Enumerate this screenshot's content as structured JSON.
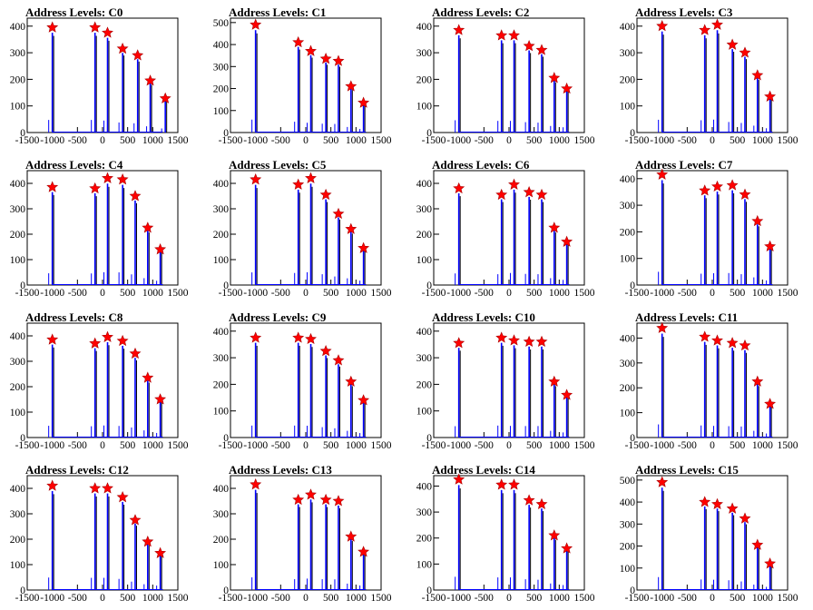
{
  "panels": [
    {
      "title": "Address Levels: C0",
      "chart_data": {
        "type": "histogram",
        "ylim": [
          0,
          430
        ],
        "xlim": [
          -1500,
          1500
        ],
        "peaks_x": [
          -1000,
          -150,
          100,
          400,
          700,
          950,
          1250
        ],
        "star_values": [
          395,
          395,
          375,
          315,
          290,
          195,
          128
        ]
      }
    },
    {
      "title": "Address Levels: C1",
      "chart_data": {
        "type": "histogram",
        "ylim": [
          0,
          520
        ],
        "xlim": [
          -1500,
          1500
        ],
        "peaks_x": [
          -1000,
          -150,
          100,
          400,
          650,
          900,
          1150
        ],
        "star_values": [
          490,
          410,
          370,
          335,
          325,
          210,
          135
        ]
      }
    },
    {
      "title": "Address Levels: C2",
      "chart_data": {
        "type": "histogram",
        "ylim": [
          0,
          430
        ],
        "xlim": [
          -1500,
          1500
        ],
        "peaks_x": [
          -1000,
          -150,
          100,
          400,
          650,
          900,
          1150
        ],
        "star_values": [
          385,
          365,
          365,
          325,
          310,
          205,
          165
        ]
      }
    },
    {
      "title": "Address Levels: C3",
      "chart_data": {
        "type": "histogram",
        "ylim": [
          0,
          430
        ],
        "xlim": [
          -1500,
          1500
        ],
        "peaks_x": [
          -1000,
          -150,
          100,
          400,
          650,
          900,
          1150
        ],
        "star_values": [
          400,
          385,
          405,
          330,
          300,
          215,
          135
        ]
      }
    },
    {
      "title": "Address Levels: C4",
      "chart_data": {
        "type": "histogram",
        "ylim": [
          0,
          450
        ],
        "xlim": [
          -1500,
          1500
        ],
        "peaks_x": [
          -1000,
          -150,
          100,
          400,
          650,
          900,
          1150
        ],
        "star_values": [
          385,
          380,
          420,
          415,
          350,
          225,
          140
        ]
      }
    },
    {
      "title": "Address Levels: C5",
      "chart_data": {
        "type": "histogram",
        "ylim": [
          0,
          450
        ],
        "xlim": [
          -1500,
          1500
        ],
        "peaks_x": [
          -1000,
          -150,
          100,
          400,
          650,
          900,
          1150
        ],
        "star_values": [
          415,
          395,
          420,
          355,
          280,
          220,
          145
        ]
      }
    },
    {
      "title": "Address Levels: C6",
      "chart_data": {
        "type": "histogram",
        "ylim": [
          0,
          450
        ],
        "xlim": [
          -1500,
          1500
        ],
        "peaks_x": [
          -1000,
          -150,
          100,
          400,
          650,
          900,
          1150
        ],
        "star_values": [
          380,
          355,
          395,
          365,
          355,
          225,
          170
        ]
      }
    },
    {
      "title": "Address Levels: C7",
      "chart_data": {
        "type": "histogram",
        "ylim": [
          0,
          430
        ],
        "xlim": [
          -1500,
          1500
        ],
        "peaks_x": [
          -1000,
          -150,
          100,
          400,
          650,
          900,
          1150
        ],
        "star_values": [
          415,
          355,
          370,
          375,
          340,
          240,
          145
        ]
      }
    },
    {
      "title": "Address Levels: C8",
      "chart_data": {
        "type": "histogram",
        "ylim": [
          0,
          450
        ],
        "xlim": [
          -1500,
          1500
        ],
        "peaks_x": [
          -1000,
          -150,
          100,
          400,
          650,
          900,
          1150
        ],
        "star_values": [
          385,
          370,
          395,
          380,
          330,
          235,
          150
        ]
      }
    },
    {
      "title": "Address Levels: C9",
      "chart_data": {
        "type": "histogram",
        "ylim": [
          0,
          430
        ],
        "xlim": [
          -1500,
          1500
        ],
        "peaks_x": [
          -1000,
          -150,
          100,
          400,
          650,
          900,
          1150
        ],
        "star_values": [
          375,
          375,
          370,
          325,
          290,
          210,
          140
        ]
      }
    },
    {
      "title": "Address Levels: C10",
      "chart_data": {
        "type": "histogram",
        "ylim": [
          0,
          430
        ],
        "xlim": [
          -1500,
          1500
        ],
        "peaks_x": [
          -1000,
          -150,
          100,
          400,
          650,
          900,
          1150
        ],
        "star_values": [
          355,
          375,
          365,
          360,
          360,
          210,
          160
        ]
      }
    },
    {
      "title": "Address Levels: C11",
      "chart_data": {
        "type": "histogram",
        "ylim": [
          0,
          460
        ],
        "xlim": [
          -1500,
          1500
        ],
        "peaks_x": [
          -1000,
          -150,
          100,
          400,
          650,
          900,
          1150
        ],
        "star_values": [
          440,
          405,
          390,
          380,
          370,
          225,
          135
        ]
      }
    },
    {
      "title": "Address Levels: C12",
      "chart_data": {
        "type": "histogram",
        "ylim": [
          0,
          450
        ],
        "xlim": [
          -1500,
          1500
        ],
        "peaks_x": [
          -1000,
          -150,
          100,
          400,
          650,
          900,
          1150
        ],
        "star_values": [
          410,
          400,
          400,
          365,
          275,
          190,
          145
        ]
      }
    },
    {
      "title": "Address Levels: C13",
      "chart_data": {
        "type": "histogram",
        "ylim": [
          0,
          450
        ],
        "xlim": [
          -1500,
          1500
        ],
        "peaks_x": [
          -1000,
          -150,
          100,
          400,
          650,
          900,
          1150
        ],
        "star_values": [
          415,
          355,
          375,
          355,
          350,
          210,
          150
        ]
      }
    },
    {
      "title": "Address Levels: C14",
      "chart_data": {
        "type": "histogram",
        "ylim": [
          0,
          440
        ],
        "xlim": [
          -1500,
          1500
        ],
        "peaks_x": [
          -1000,
          -150,
          100,
          400,
          650,
          900,
          1150
        ],
        "star_values": [
          425,
          405,
          405,
          345,
          330,
          210,
          160
        ]
      }
    },
    {
      "title": "Address Levels: C15",
      "chart_data": {
        "type": "histogram",
        "ylim": [
          0,
          520
        ],
        "xlim": [
          -1500,
          1500
        ],
        "peaks_x": [
          -1000,
          -150,
          100,
          400,
          650,
          900,
          1150
        ],
        "star_values": [
          490,
          400,
          390,
          370,
          325,
          205,
          120
        ]
      }
    }
  ],
  "xtick_labels": [
    "-1500",
    "-1000",
    "-500",
    "0",
    "500",
    "1000",
    "1500"
  ],
  "colors": {
    "histogram": "#0000ff",
    "outline": "#000000",
    "marker": "#ff0000"
  }
}
